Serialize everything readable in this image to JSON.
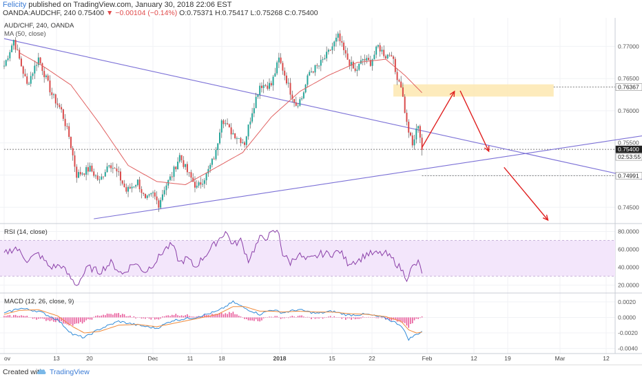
{
  "header": {
    "author": "Felicity",
    "published": "published on TradingView.com, January 30, 2018 22:06 EST",
    "symbol": "OANDA:AUDCHF, 240",
    "last": "0.75400",
    "change": "−0.00104 (−0.14%)",
    "ohlc": "O:0.75371 H:0.75417 L:0.75268 C:0.75400"
  },
  "footer": {
    "created_with": "Created with",
    "brand": "TradingView"
  },
  "colors": {
    "candle_up": "#26a69a",
    "candle_down": "#d94a4a",
    "ma": "#e06060",
    "trendline": "#7a6fd6",
    "arrow": "#e02020",
    "zone": "#fde7b0",
    "rsi_line": "#8a3fa8",
    "rsi_band": "#f3e6fb",
    "macd_line": "#2f8ad8",
    "signal_line": "#f08a3a",
    "hist": "#e85a9a"
  },
  "chart_data": [
    {
      "type": "candlestick",
      "title": "AUD/CHF, 240, OANDA",
      "indicator_label": "MA (50, close)",
      "x_labels": [
        "ov",
        "13",
        "20",
        "Dec",
        "11",
        "18",
        "2018",
        "15",
        "22",
        "Feb",
        "12",
        "19",
        "Mar",
        "12"
      ],
      "ylim": [
        0.743,
        0.774
      ],
      "y_ticks": [
        0.745,
        0.75,
        0.755,
        0.76,
        0.765,
        0.77
      ],
      "price_labels": [
        {
          "value": 0.76367,
          "text": "0.76367"
        },
        {
          "value": 0.754,
          "text": "0.75400"
        },
        {
          "value": 0.754,
          "text": "02:53:55",
          "kind": "countdown"
        },
        {
          "value": 0.74991,
          "text": "0.74991"
        }
      ],
      "bar_count": 220,
      "close_anchors": [
        [
          0,
          0.767
        ],
        [
          5,
          0.771
        ],
        [
          12,
          0.764
        ],
        [
          18,
          0.7682
        ],
        [
          25,
          0.7625
        ],
        [
          30,
          0.76
        ],
        [
          34,
          0.756
        ],
        [
          38,
          0.75
        ],
        [
          45,
          0.751
        ],
        [
          50,
          0.749
        ],
        [
          55,
          0.752
        ],
        [
          60,
          0.75
        ],
        [
          64,
          0.7475
        ],
        [
          70,
          0.749
        ],
        [
          74,
          0.746
        ],
        [
          78,
          0.747
        ],
        [
          81,
          0.7455
        ],
        [
          84,
          0.748
        ],
        [
          88,
          0.75
        ],
        [
          92,
          0.753
        ],
        [
          96,
          0.7505
        ],
        [
          101,
          0.748
        ],
        [
          106,
          0.75
        ],
        [
          111,
          0.7535
        ],
        [
          114,
          0.759
        ],
        [
          118,
          0.757
        ],
        [
          122,
          0.756
        ],
        [
          126,
          0.755
        ],
        [
          130,
          0.76
        ],
        [
          134,
          0.764
        ],
        [
          140,
          0.764
        ],
        [
          144,
          0.768
        ],
        [
          146,
          0.7665
        ],
        [
          150,
          0.763
        ],
        [
          153,
          0.761
        ],
        [
          156,
          0.762
        ],
        [
          160,
          0.766
        ],
        [
          165,
          0.767
        ],
        [
          170,
          0.769
        ],
        [
          175,
          0.7715
        ],
        [
          179,
          0.7685
        ],
        [
          184,
          0.766
        ],
        [
          188,
          0.768
        ],
        [
          192,
          0.7675
        ],
        [
          196,
          0.77
        ],
        [
          200,
          0.7685
        ],
        [
          203,
          0.769
        ],
        [
          205,
          0.766
        ],
        [
          208,
          0.764
        ],
        [
          211,
          0.758
        ],
        [
          214,
          0.7545
        ],
        [
          217,
          0.758
        ],
        [
          219,
          0.754
        ]
      ],
      "ma_anchors": [
        [
          8,
          0.769
        ],
        [
          20,
          0.767
        ],
        [
          35,
          0.764
        ],
        [
          50,
          0.758
        ],
        [
          65,
          0.7515
        ],
        [
          80,
          0.749
        ],
        [
          95,
          0.7485
        ],
        [
          110,
          0.751
        ],
        [
          125,
          0.7535
        ],
        [
          140,
          0.759
        ],
        [
          155,
          0.763
        ],
        [
          170,
          0.7655
        ],
        [
          185,
          0.7675
        ],
        [
          200,
          0.768
        ],
        [
          210,
          0.7655
        ],
        [
          219,
          0.7628
        ]
      ],
      "trendlines": [
        {
          "name": "falling resistance",
          "from": [
            0,
            0.7712
          ],
          "to": [
            375,
            0.7467
          ]
        },
        {
          "name": "rising support",
          "from": [
            47,
            0.7432
          ],
          "to": [
            377,
            0.758
          ]
        }
      ],
      "zone": {
        "x": [
          204,
          288
        ],
        "y": [
          0.7622,
          0.7641
        ]
      },
      "dotted_levels": [
        {
          "value": 0.76367,
          "from": 288
        },
        {
          "value": 0.754,
          "from": 0
        },
        {
          "value": 0.74991,
          "from": 219
        }
      ],
      "forecast_arrows": [
        [
          [
            219,
            0.7543
          ],
          [
            236,
            0.763
          ]
        ],
        [
          [
            239,
            0.7631
          ],
          [
            254,
            0.7537
          ]
        ],
        [
          [
            262,
            0.7512
          ],
          [
            285,
            0.743
          ]
        ]
      ]
    },
    {
      "type": "line",
      "title": "RSI (14, close)",
      "ylim": [
        15,
        85
      ],
      "y_ticks": [
        20,
        40,
        60,
        80
      ],
      "band": [
        30,
        70
      ],
      "anchors": [
        [
          0,
          55
        ],
        [
          6,
          62
        ],
        [
          12,
          48
        ],
        [
          18,
          55
        ],
        [
          24,
          40
        ],
        [
          30,
          42
        ],
        [
          34,
          30
        ],
        [
          38,
          20
        ],
        [
          44,
          40
        ],
        [
          50,
          35
        ],
        [
          56,
          45
        ],
        [
          62,
          32
        ],
        [
          68,
          45
        ],
        [
          74,
          35
        ],
        [
          80,
          48
        ],
        [
          84,
          60
        ],
        [
          88,
          65
        ],
        [
          92,
          45
        ],
        [
          96,
          50
        ],
        [
          100,
          40
        ],
        [
          106,
          55
        ],
        [
          112,
          70
        ],
        [
          116,
          80
        ],
        [
          120,
          65
        ],
        [
          124,
          70
        ],
        [
          128,
          48
        ],
        [
          134,
          72
        ],
        [
          138,
          74
        ],
        [
          142,
          80
        ],
        [
          144,
          78
        ],
        [
          146,
          55
        ],
        [
          150,
          45
        ],
        [
          154,
          55
        ],
        [
          158,
          48
        ],
        [
          162,
          50
        ],
        [
          166,
          55
        ],
        [
          172,
          55
        ],
        [
          176,
          58
        ],
        [
          180,
          45
        ],
        [
          186,
          48
        ],
        [
          190,
          55
        ],
        [
          196,
          55
        ],
        [
          200,
          55
        ],
        [
          204,
          48
        ],
        [
          208,
          38
        ],
        [
          211,
          28
        ],
        [
          214,
          40
        ],
        [
          217,
          45
        ],
        [
          219,
          35
        ]
      ]
    },
    {
      "type": "line",
      "title": "MACD (12, 26, close, 9)",
      "ylim": [
        -0.0043,
        0.0027
      ],
      "y_ticks": [
        0.002,
        0.0,
        -0.002,
        -0.004
      ],
      "y_tick_labels": [
        "0.0020",
        "0.0000",
        "-0.0020",
        "-0.0040"
      ],
      "series": [
        {
          "name": "",
          "kind": "macd",
          "anchors": [
            [
              0,
              0.0005
            ],
            [
              8,
              0.0012
            ],
            [
              18,
              0.0008
            ],
            [
              28,
              -0.0003
            ],
            [
              36,
              -0.0022
            ],
            [
              42,
              -0.0026
            ],
            [
              50,
              -0.0015
            ],
            [
              60,
              -0.0005
            ],
            [
              70,
              -0.001
            ],
            [
              80,
              -0.0014
            ],
            [
              88,
              -0.0004
            ],
            [
              100,
              0.0
            ],
            [
              112,
              0.0008
            ],
            [
              120,
              0.002
            ],
            [
              126,
              0.0012
            ],
            [
              134,
              0.0004
            ],
            [
              140,
              0.001
            ],
            [
              146,
              0.0006
            ],
            [
              154,
              0.001
            ],
            [
              164,
              0.0005
            ],
            [
              172,
              0.0008
            ],
            [
              180,
              0.0003
            ],
            [
              190,
              0.0004
            ],
            [
              200,
              -0.0001
            ],
            [
              208,
              -0.001
            ],
            [
              212,
              -0.0028
            ],
            [
              216,
              -0.0022
            ],
            [
              219,
              -0.0018
            ]
          ]
        },
        {
          "name": "",
          "kind": "signal",
          "anchors": [
            [
              0,
              0.0004
            ],
            [
              8,
              0.0009
            ],
            [
              18,
              0.001
            ],
            [
              28,
              0.0002
            ],
            [
              36,
              -0.0012
            ],
            [
              42,
              -0.002
            ],
            [
              50,
              -0.0018
            ],
            [
              60,
              -0.001
            ],
            [
              70,
              -0.0009
            ],
            [
              80,
              -0.0012
            ],
            [
              88,
              -0.0008
            ],
            [
              100,
              -0.0002
            ],
            [
              112,
              0.0004
            ],
            [
              120,
              0.0014
            ],
            [
              126,
              0.0014
            ],
            [
              134,
              0.0008
            ],
            [
              140,
              0.0008
            ],
            [
              146,
              0.0007
            ],
            [
              154,
              0.0008
            ],
            [
              164,
              0.0007
            ],
            [
              172,
              0.0007
            ],
            [
              180,
              0.0005
            ],
            [
              190,
              0.0004
            ],
            [
              200,
              0.0001
            ],
            [
              208,
              -0.0005
            ],
            [
              212,
              -0.0016
            ],
            [
              216,
              -0.002
            ],
            [
              219,
              -0.0019
            ]
          ]
        }
      ]
    }
  ]
}
